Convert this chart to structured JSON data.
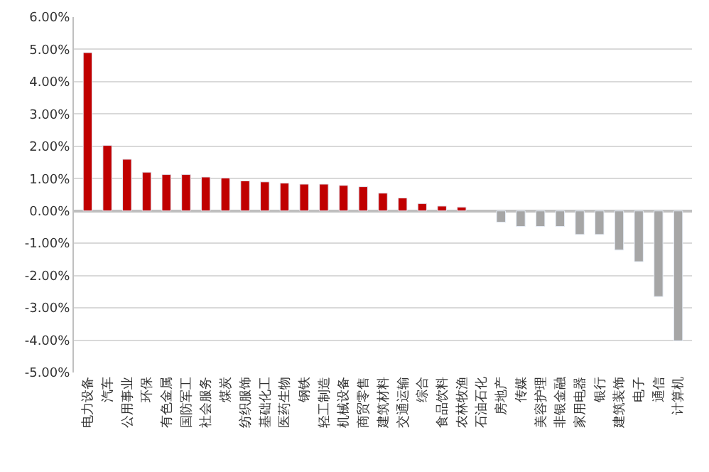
{
  "chart_data": {
    "type": "bar",
    "categories": [
      "电力设备",
      "汽车",
      "公用事业",
      "环保",
      "有色金属",
      "国防军工",
      "社会服务",
      "煤炭",
      "纺织服饰",
      "基础化工",
      "医药生物",
      "钢铁",
      "轻工制造",
      "机械设备",
      "商贸零售",
      "建筑材料",
      "交通运输",
      "综合",
      "食品饮料",
      "农林牧渔",
      "石油石化",
      "房地产",
      "传媒",
      "美容护理",
      "非银金融",
      "家用电器",
      "银行",
      "建筑装饰",
      "电子",
      "通信",
      "计算机"
    ],
    "values": [
      4.9,
      2.03,
      1.6,
      1.2,
      1.13,
      1.13,
      1.05,
      1.02,
      0.93,
      0.9,
      0.86,
      0.83,
      0.83,
      0.79,
      0.75,
      0.55,
      0.4,
      0.23,
      0.15,
      0.12,
      null,
      -0.35,
      -0.48,
      -0.48,
      -0.48,
      -0.73,
      -0.73,
      -1.21,
      -1.57,
      -2.65,
      -4.02
    ],
    "colors": [
      "#c00000",
      "#c00000",
      "#c00000",
      "#c00000",
      "#c00000",
      "#c00000",
      "#c00000",
      "#c00000",
      "#c00000",
      "#c00000",
      "#c00000",
      "#c00000",
      "#c00000",
      "#c00000",
      "#c00000",
      "#c00000",
      "#c00000",
      "#c00000",
      "#c00000",
      "#c00000",
      "#a6a6a6",
      "#a6a6a6",
      "#a6a6a6",
      "#a6a6a6",
      "#a6a6a6",
      "#a6a6a6",
      "#a6a6a6",
      "#a6a6a6",
      "#a6a6a6",
      "#a6a6a6",
      "#a6a6a6"
    ],
    "ylim": [
      -5,
      6
    ],
    "yticks": [
      {
        "value": 6,
        "label": "6.00%"
      },
      {
        "value": 5,
        "label": "5.00%"
      },
      {
        "value": 4,
        "label": "4.00%"
      },
      {
        "value": 3,
        "label": "3.00%"
      },
      {
        "value": 2,
        "label": "2.00%"
      },
      {
        "value": 1,
        "label": "1.00%"
      },
      {
        "value": 0,
        "label": "0.00%"
      },
      {
        "value": -1,
        "label": "-1.00%"
      },
      {
        "value": -2,
        "label": "-2.00%"
      },
      {
        "value": -3,
        "label": "-3.00%"
      },
      {
        "value": -4,
        "label": "-4.00%"
      },
      {
        "value": -5,
        "label": "-5.00%"
      }
    ],
    "grid": "y"
  }
}
